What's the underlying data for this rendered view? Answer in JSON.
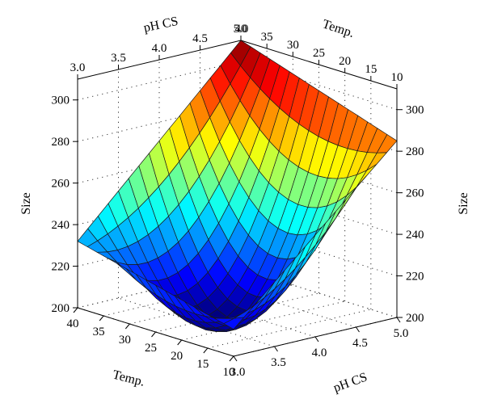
{
  "chart_data": {
    "type": "surface",
    "title": "",
    "zlabel": "Size",
    "xlabel": "pH CS",
    "ylabel": "Temp.",
    "x_ticks": [
      "3.0",
      "3.5",
      "4.0",
      "4.5",
      "5.0"
    ],
    "y_ticks_front": [
      "40",
      "35",
      "30",
      "25",
      "20",
      "15",
      "10"
    ],
    "y_ticks_top": [
      "40",
      "35",
      "30",
      "25",
      "20",
      "15",
      "10"
    ],
    "z_ticks": [
      "200",
      "220",
      "240",
      "260",
      "280",
      "300"
    ],
    "x_range": [
      3.0,
      5.0
    ],
    "y_range": [
      10,
      40
    ],
    "z_range": [
      200,
      310
    ],
    "grid": true,
    "colormap": "jet",
    "colors": {
      "background": "#ffffff",
      "axis": "#000000",
      "mesh": "#1a1a1a"
    },
    "surface_corners": [
      {
        "ph": 3.0,
        "temp": 10,
        "size": 213
      },
      {
        "ph": 3.0,
        "temp": 40,
        "size": 232
      },
      {
        "ph": 5.0,
        "temp": 10,
        "size": 285
      },
      {
        "ph": 5.0,
        "temp": 40,
        "size": 310
      }
    ],
    "surface_minimum": {
      "ph": 3.8,
      "temp": 27,
      "size": 200
    }
  }
}
